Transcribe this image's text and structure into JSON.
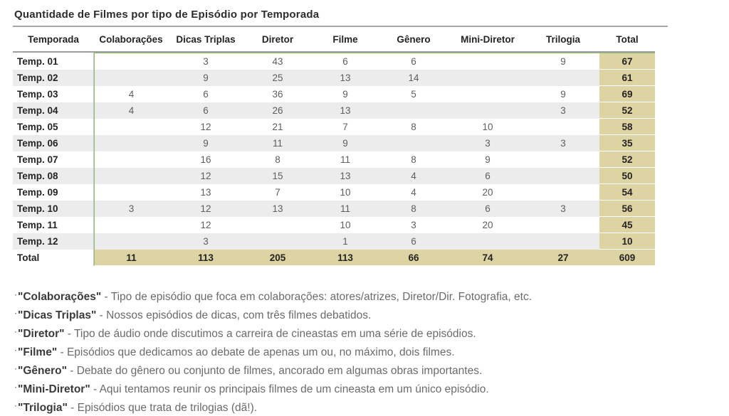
{
  "title": "Quantidade de Filmes por tipo de Episódio por Temporada",
  "colors": {
    "total_highlight": "#ddd3a3",
    "row_stripe": "#ececec",
    "values_border_green": "#8cbe70",
    "header_rule_gray": "#9e9e9e"
  },
  "legend_bullet": "·",
  "table": {
    "columns": [
      "Temporada",
      "Colaborações",
      "Dicas Triplas",
      "Diretor",
      "Filme",
      "Gênero",
      "Mini-Diretor",
      "Trilogia",
      "Total"
    ],
    "rows": [
      {
        "label": "Temp. 01",
        "values": [
          "",
          "3",
          "43",
          "6",
          "6",
          "",
          "9"
        ],
        "total": "67"
      },
      {
        "label": "Temp. 02",
        "values": [
          "",
          "9",
          "25",
          "13",
          "14",
          "",
          ""
        ],
        "total": "61"
      },
      {
        "label": "Temp. 03",
        "values": [
          "4",
          "6",
          "36",
          "9",
          "5",
          "",
          "9"
        ],
        "total": "69"
      },
      {
        "label": "Temp. 04",
        "values": [
          "4",
          "6",
          "26",
          "13",
          "",
          "",
          "3"
        ],
        "total": "52"
      },
      {
        "label": "Temp. 05",
        "values": [
          "",
          "12",
          "21",
          "7",
          "8",
          "10",
          ""
        ],
        "total": "58"
      },
      {
        "label": "Temp. 06",
        "values": [
          "",
          "9",
          "11",
          "9",
          "",
          "3",
          "3"
        ],
        "total": "35"
      },
      {
        "label": "Temp. 07",
        "values": [
          "",
          "16",
          "8",
          "11",
          "8",
          "9",
          ""
        ],
        "total": "52"
      },
      {
        "label": "Temp. 08",
        "values": [
          "",
          "12",
          "15",
          "13",
          "4",
          "6",
          ""
        ],
        "total": "50"
      },
      {
        "label": "Temp. 09",
        "values": [
          "",
          "13",
          "7",
          "10",
          "4",
          "20",
          ""
        ],
        "total": "54"
      },
      {
        "label": "Temp. 10",
        "values": [
          "3",
          "12",
          "13",
          "11",
          "8",
          "6",
          "3"
        ],
        "total": "56"
      },
      {
        "label": "Temp. 11",
        "values": [
          "",
          "12",
          "",
          "10",
          "3",
          "20",
          ""
        ],
        "total": "45"
      },
      {
        "label": "Temp. 12",
        "values": [
          "",
          "3",
          "",
          "1",
          "6",
          "",
          ""
        ],
        "total": "10"
      }
    ],
    "total_row": {
      "label": "Total",
      "values": [
        "11",
        "113",
        "205",
        "113",
        "66",
        "74",
        "27"
      ],
      "total": "609"
    }
  },
  "legend": [
    {
      "term": "\"Colaborações\"",
      "description": "- Tipo de episódio que foca em colaborações: atores/atrizes, Diretor/Dir. Fotografia, etc."
    },
    {
      "term": "\"Dicas Triplas\"",
      "description": "- Nossos episódios de dicas, com três filmes debatidos."
    },
    {
      "term": "\"Diretor\"",
      "description": "- Tipo de áudio onde discutimos a carreira de cineastas em uma série de episódios."
    },
    {
      "term": "\"Filme\"",
      "description": "- Episódios que dedicamos ao debate de apenas um ou, no máximo, dois filmes."
    },
    {
      "term": "\"Gênero\"",
      "description": "- Debate do gênero ou conjunto de filmes, ancorado em algumas obras importantes."
    },
    {
      "term": "\"Mini-Diretor\"",
      "description": "- Aqui tentamos reunir os principais filmes de um cineasta em um único episódio."
    },
    {
      "term": "\"Trilogia\"",
      "description": "- Episódios que trata de trilogias (dã!)."
    }
  ]
}
